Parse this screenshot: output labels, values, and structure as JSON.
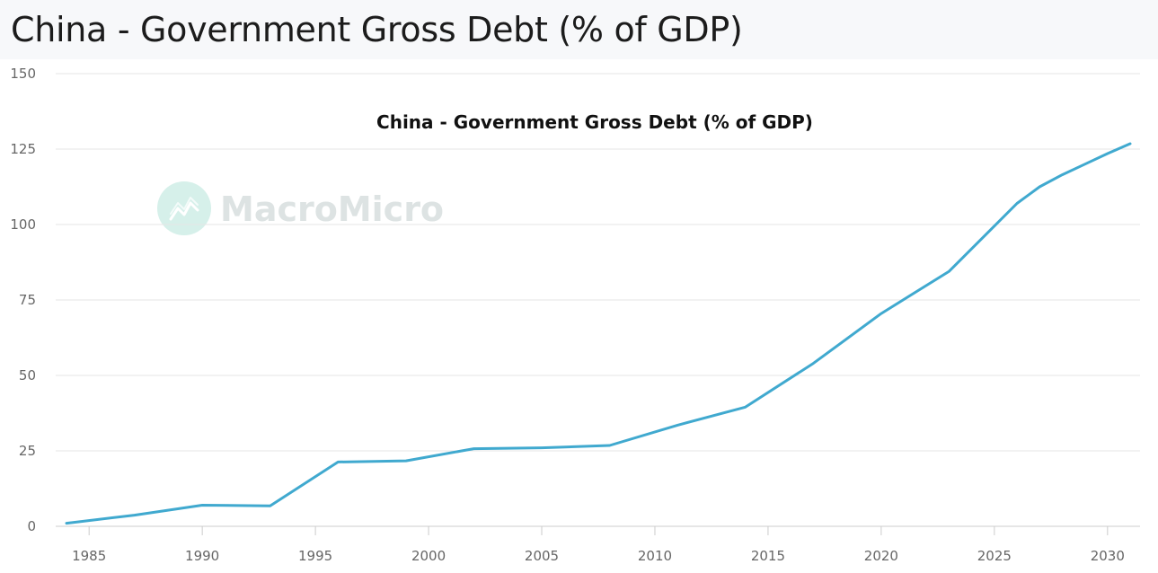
{
  "header": {
    "title": "China - Government Gross Debt (% of GDP)"
  },
  "watermark": {
    "text": "MacroMicro",
    "logo_icon": "macromicro-logo-icon",
    "color": "#dde3e3",
    "logo_color": "#d6f0ea"
  },
  "chart_data": {
    "type": "line",
    "title": "China - Government Gross Debt (% of GDP)",
    "xlabel": "",
    "ylabel": "",
    "xlim": [
      1984,
      2031
    ],
    "ylim": [
      0,
      150
    ],
    "yticks": [
      0,
      25,
      50,
      75,
      100,
      125,
      150
    ],
    "xticks": [
      1985,
      1990,
      1995,
      2000,
      2005,
      2010,
      2015,
      2020,
      2025,
      2030
    ],
    "grid": true,
    "legend": "none",
    "series": [
      {
        "color": "#40a9cf",
        "x": [
          1984,
          1987,
          1990,
          1993,
          1996,
          1999,
          2002,
          2005,
          2008,
          2011,
          2014,
          2017,
          2020,
          2023,
          2026,
          2027,
          2028,
          2029,
          2030,
          2031
        ],
        "values": [
          1.0,
          3.7,
          7.0,
          6.8,
          21.3,
          21.7,
          25.7,
          26.0,
          26.8,
          33.5,
          39.5,
          54.0,
          70.5,
          84.5,
          107.0,
          112.5,
          116.5,
          120.0,
          123.5,
          126.8
        ]
      }
    ]
  }
}
